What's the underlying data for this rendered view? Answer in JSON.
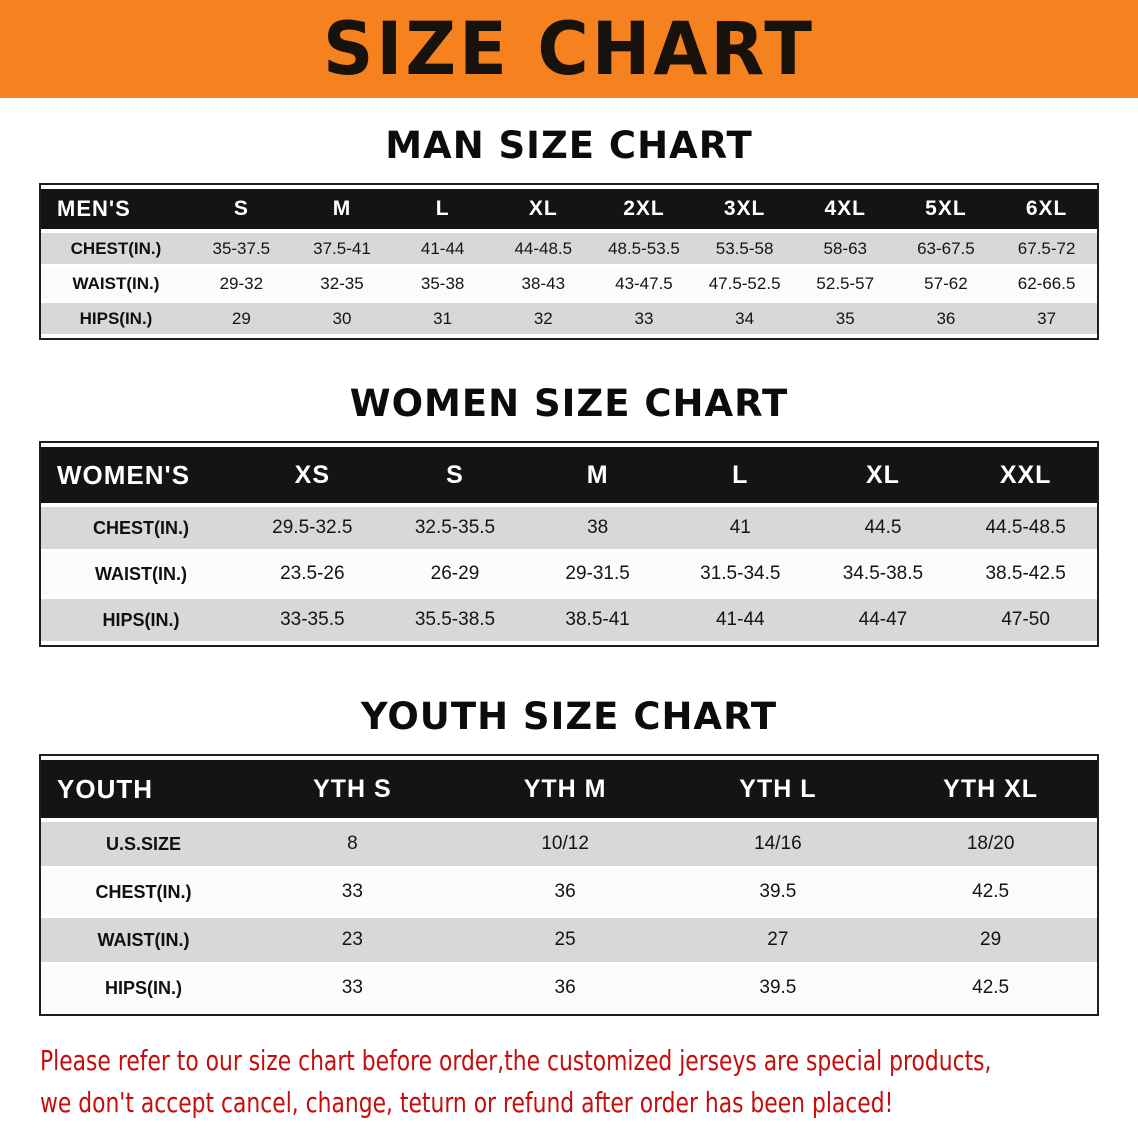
{
  "banner": {
    "title": "SIZE CHART",
    "background_color": "#f5821f",
    "text_color": "#17120b"
  },
  "men": {
    "heading": "MAN SIZE CHART",
    "header": [
      "MEN'S",
      "S",
      "M",
      "L",
      "XL",
      "2XL",
      "3XL",
      "4XL",
      "5XL",
      "6XL"
    ],
    "rows": [
      [
        "CHEST(IN.)",
        "35-37.5",
        "37.5-41",
        "41-44",
        "44-48.5",
        "48.5-53.5",
        "53.5-58",
        "58-63",
        "63-67.5",
        "67.5-72"
      ],
      [
        "WAIST(IN.)",
        "29-32",
        "32-35",
        "35-38",
        "38-43",
        "43-47.5",
        "47.5-52.5",
        "52.5-57",
        "57-62",
        "62-66.5"
      ],
      [
        "HIPS(IN.)",
        "29",
        "30",
        "31",
        "32",
        "33",
        "34",
        "35",
        "36",
        "37"
      ]
    ]
  },
  "women": {
    "heading": "WOMEN SIZE CHART",
    "header": [
      "WOMEN'S",
      "XS",
      "S",
      "M",
      "L",
      "XL",
      "XXL"
    ],
    "rows": [
      [
        "CHEST(IN.)",
        "29.5-32.5",
        "32.5-35.5",
        "38",
        "41",
        "44.5",
        "44.5-48.5"
      ],
      [
        "WAIST(IN.)",
        "23.5-26",
        "26-29",
        "29-31.5",
        "31.5-34.5",
        "34.5-38.5",
        "38.5-42.5"
      ],
      [
        "HIPS(IN.)",
        "33-35.5",
        "35.5-38.5",
        "38.5-41",
        "41-44",
        "44-47",
        "47-50"
      ]
    ]
  },
  "youth": {
    "heading": "YOUTH SIZE CHART",
    "header": [
      "YOUTH",
      "YTH S",
      "YTH M",
      "YTH L",
      "YTH XL"
    ],
    "rows": [
      [
        "U.S.SIZE",
        "8",
        "10/12",
        "14/16",
        "18/20"
      ],
      [
        "CHEST(IN.)",
        "33",
        "36",
        "39.5",
        "42.5"
      ],
      [
        "WAIST(IN.)",
        "23",
        "25",
        "27",
        "29"
      ],
      [
        "HIPS(IN.)",
        "33",
        "36",
        "39.5",
        "42.5"
      ]
    ]
  },
  "footer": {
    "lines": [
      "Please refer to our size chart before order,the customized jerseys are special products,",
      "we don't accept cancel, change, teturn or refund after order has been placed!"
    ],
    "text_color": "#c60d0d"
  },
  "colors": {
    "table_header_bg": "#141414",
    "row_stripe": "#d8d8d8"
  }
}
